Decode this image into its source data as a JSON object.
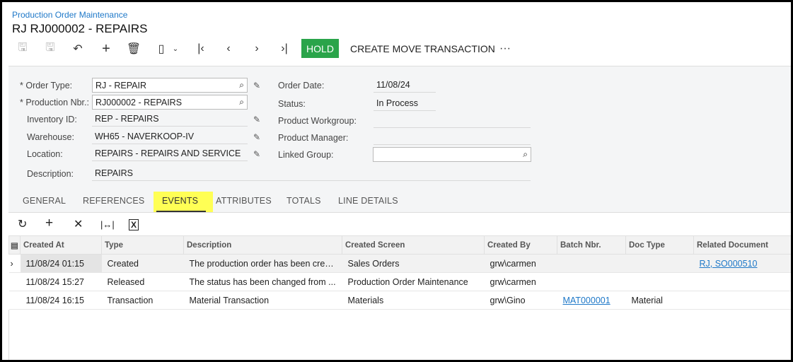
{
  "breadcrumb": "Production Order Maintenance",
  "title": "RJ RJ000002 - REPAIRS",
  "toolbar": {
    "hold": "HOLD",
    "create_move": "CREATE MOVE TRANSACTION",
    "more": "···",
    "hold_color": "#2aa44a"
  },
  "form": {
    "order_type_label": "Order Type:",
    "order_type": "RJ - REPAIR",
    "prod_nbr_label": "Production Nbr.:",
    "prod_nbr": "RJ000002 - REPAIRS",
    "inventory_label": "Inventory ID:",
    "inventory": "REP - REPAIRS",
    "warehouse_label": "Warehouse:",
    "warehouse": "WH65 - NAVERKOOP-IV",
    "location_label": "Location:",
    "location": "REPAIRS - REPAIRS AND SERVICE",
    "description_label": "Description:",
    "description": "REPAIRS",
    "order_date_label": "Order Date:",
    "order_date": "11/08/24",
    "status_label": "Status:",
    "status": "In Process",
    "workgroup_label": "Product Workgroup:",
    "workgroup": "",
    "manager_label": "Product Manager:",
    "manager": "",
    "linked_label": "Linked Group:",
    "linked": ""
  },
  "tabs": [
    "GENERAL",
    "REFERENCES",
    "EVENTS",
    "ATTRIBUTES",
    "TOTALS",
    "LINE DETAILS"
  ],
  "active_tab": "EVENTS",
  "grid": {
    "columns": [
      "Created At",
      "Type",
      "Description",
      "Created Screen",
      "Created By",
      "Batch Nbr.",
      "Doc Type",
      "Related Document"
    ],
    "rows": [
      [
        "11/08/24 01:15",
        "Created",
        "The production order has been crea...",
        "Sales Orders",
        "grw\\carmen",
        "",
        "",
        "RJ, SO000510"
      ],
      [
        "11/08/24 15:27",
        "Released",
        "The status has been changed from ...",
        "Production Order Maintenance",
        "grw\\carmen",
        "",
        "",
        ""
      ],
      [
        "11/08/24 16:15",
        "Transaction",
        "Material Transaction",
        "Materials",
        "grw\\Gino",
        "MAT000001",
        "Material",
        ""
      ]
    ]
  }
}
